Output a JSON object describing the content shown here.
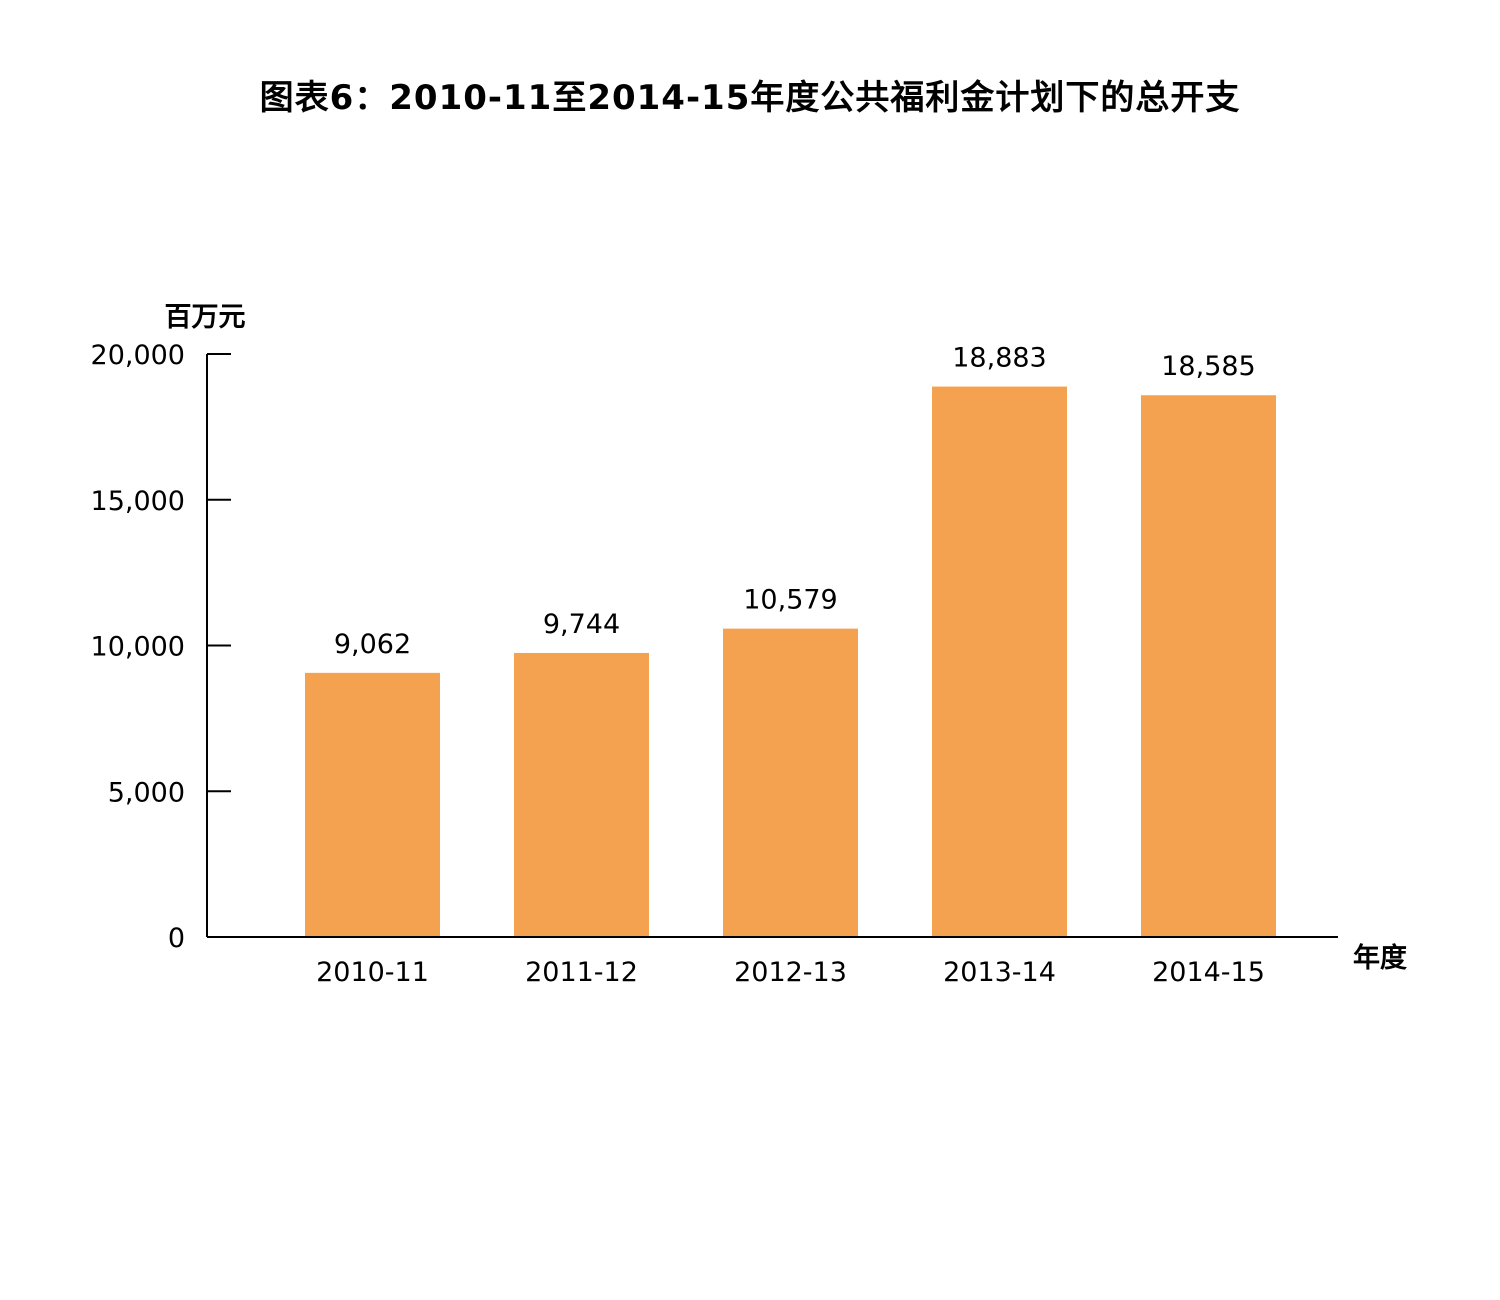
{
  "chart_data": {
    "type": "bar",
    "title": "图表6：2010-11至2014-15年度公共福利金计划下的总开支",
    "ylabel": "百万元",
    "xlabel": "年度",
    "categories": [
      "2010-11",
      "2011-12",
      "2012-13",
      "2013-14",
      "2014-15"
    ],
    "values": [
      9062,
      9744,
      10579,
      18883,
      18585
    ],
    "value_labels": [
      "9,062",
      "9,744",
      "10,579",
      "18,883",
      "18,585"
    ],
    "yticks": [
      0,
      5000,
      10000,
      15000,
      20000
    ],
    "ytick_labels": [
      "0",
      "5,000",
      "10,000",
      "15,000",
      "20,000"
    ],
    "ylim": [
      0,
      20000
    ],
    "grid": false,
    "legend": "none",
    "bar_color": "#F4A24F",
    "axis_color": "#000000"
  }
}
